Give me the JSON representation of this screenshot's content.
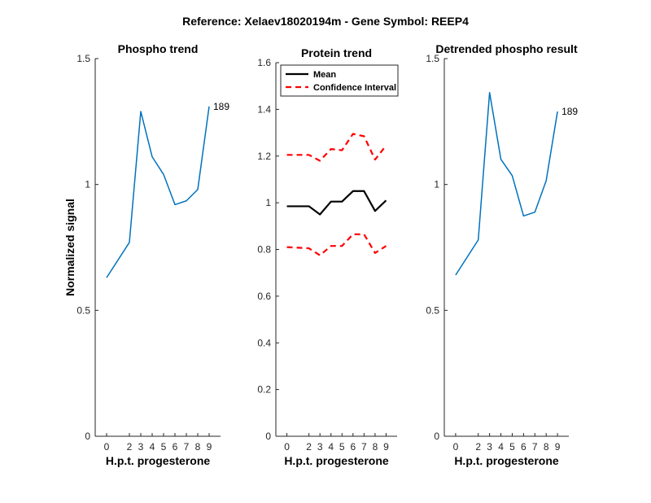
{
  "title": "Reference:  Xelaev18020194m - Gene Symbol:  REEP4",
  "chart_data": [
    {
      "type": "line",
      "title": "Phospho trend",
      "xlabel": "H.p.t. progesterone",
      "ylabel": "Normalized signal",
      "categories": [
        "0",
        "2",
        "3",
        "4",
        "5",
        "6",
        "7",
        "8",
        "9"
      ],
      "ylim": [
        0,
        1.5
      ],
      "yticks": [
        "0",
        "0.5",
        "1",
        "1.5"
      ],
      "series": [
        {
          "values": [
            0.63,
            0.77,
            1.29,
            1.11,
            1.04,
            0.92,
            0.935,
            0.98,
            1.31
          ],
          "color": "#0072BD",
          "dash": "solid"
        }
      ],
      "end_label": "189"
    },
    {
      "type": "line",
      "title": "Protein trend",
      "xlabel": "H.p.t. progesterone",
      "ylabel": "",
      "categories": [
        "0",
        "2",
        "3",
        "4",
        "5",
        "6",
        "7",
        "8",
        "9"
      ],
      "ylim": [
        0,
        1.6
      ],
      "yticks": [
        "0",
        "0.2",
        "0.4",
        "0.6",
        "0.8",
        "1",
        "1.2",
        "1.4",
        "1.6"
      ],
      "legend_position": "top-left",
      "series": [
        {
          "name": "Mean",
          "values": [
            0.985,
            0.985,
            0.95,
            1.005,
            1.005,
            1.05,
            1.05,
            0.965,
            1.01
          ],
          "color": "#000000",
          "dash": "solid"
        },
        {
          "name": "Confidence Interval",
          "values": [
            1.205,
            1.205,
            1.18,
            1.23,
            1.225,
            1.295,
            1.285,
            1.185,
            1.245
          ],
          "color": "#FF0000",
          "dash": "dashed"
        },
        {
          "name": "",
          "values": [
            0.81,
            0.805,
            0.775,
            0.815,
            0.815,
            0.865,
            0.865,
            0.785,
            0.815
          ],
          "color": "#FF0000",
          "dash": "dashed"
        }
      ]
    },
    {
      "type": "line",
      "title": "Detrended phospho result",
      "xlabel": "H.p.t. progesterone",
      "ylabel": "",
      "categories": [
        "0",
        "2",
        "3",
        "4",
        "5",
        "6",
        "7",
        "8",
        "9"
      ],
      "ylim": [
        0,
        1.5
      ],
      "yticks": [
        "0",
        "0.5",
        "1",
        "1.5"
      ],
      "series": [
        {
          "values": [
            0.64,
            0.78,
            1.365,
            1.1,
            1.035,
            0.875,
            0.89,
            1.015,
            1.29
          ],
          "color": "#0072BD",
          "dash": "solid"
        }
      ],
      "end_label": "189"
    }
  ]
}
